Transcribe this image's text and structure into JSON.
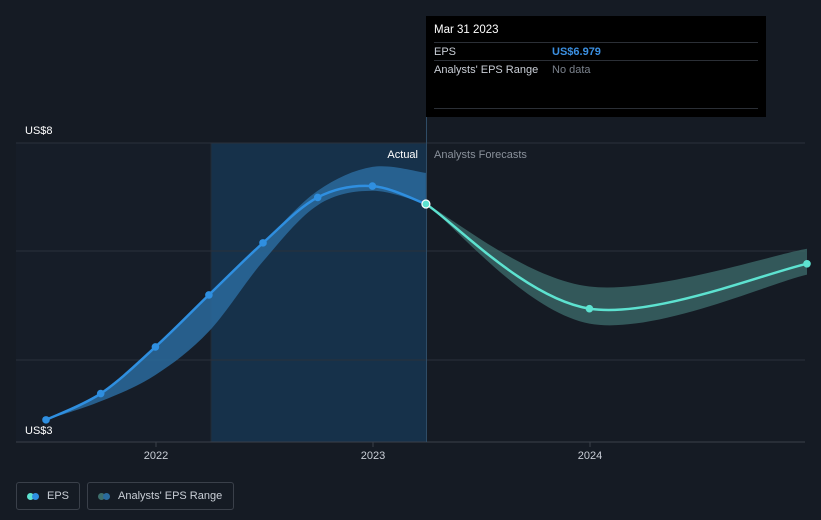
{
  "chart_data": {
    "type": "line",
    "ylabel_top": "US$8",
    "ylabel_bottom": "US$3",
    "ylim": [
      3,
      8
    ],
    "x_ticks": [
      "2022",
      "2023",
      "2024"
    ],
    "region_labels": {
      "actual": "Actual",
      "forecast": "Analysts Forecasts"
    },
    "series": [
      {
        "name": "EPS",
        "points": [
          {
            "x": "2021-06-30",
            "y": 3.37
          },
          {
            "x": "2021-09-30",
            "y": 3.81
          },
          {
            "x": "2021-12-31",
            "y": 4.59
          },
          {
            "x": "2022-03-31",
            "y": 5.46
          },
          {
            "x": "2022-06-30",
            "y": 6.33
          },
          {
            "x": "2022-09-30",
            "y": 7.09
          },
          {
            "x": "2022-12-31",
            "y": 7.28
          },
          {
            "x": "2023-03-31",
            "y": 6.98
          }
        ]
      },
      {
        "name": "EPS Forecast",
        "points": [
          {
            "x": "2023-03-31",
            "y": 6.98
          },
          {
            "x": "2023-12-31",
            "y": 5.23
          },
          {
            "x": "2024-12-31",
            "y": 5.98
          }
        ]
      }
    ],
    "actual_range": {
      "name": "Analysts' EPS Range",
      "upper": [
        {
          "x": "2021-06-30",
          "y": 3.37
        },
        {
          "x": "2021-09-30",
          "y": 3.81
        },
        {
          "x": "2021-12-31",
          "y": 4.59
        },
        {
          "x": "2022-03-31",
          "y": 5.46
        },
        {
          "x": "2022-06-30",
          "y": 6.33
        },
        {
          "x": "2022-09-30",
          "y": 7.2
        },
        {
          "x": "2022-12-31",
          "y": 7.6
        },
        {
          "x": "2023-03-31",
          "y": 7.5
        }
      ],
      "lower": [
        {
          "x": "2021-06-30",
          "y": 3.37
        },
        {
          "x": "2021-09-30",
          "y": 3.68
        },
        {
          "x": "2021-12-31",
          "y": 4.12
        },
        {
          "x": "2022-03-31",
          "y": 4.85
        },
        {
          "x": "2022-06-30",
          "y": 6.02
        },
        {
          "x": "2022-09-30",
          "y": 6.96
        },
        {
          "x": "2022-12-31",
          "y": 7.2
        },
        {
          "x": "2023-03-31",
          "y": 6.98
        }
      ]
    },
    "forecast_range": {
      "upper": [
        {
          "x": "2023-03-31",
          "y": 6.98
        },
        {
          "x": "2023-12-31",
          "y": 5.6
        },
        {
          "x": "2024-12-31",
          "y": 6.23
        }
      ],
      "lower": [
        {
          "x": "2023-03-31",
          "y": 6.98
        },
        {
          "x": "2023-12-31",
          "y": 4.98
        },
        {
          "x": "2024-12-31",
          "y": 5.8
        }
      ]
    },
    "highlighted_point": {
      "x": "2023-03-31",
      "y": 6.979
    },
    "colors": {
      "eps": "#2f8fe0",
      "forecast": "#5de2d0",
      "actual_range": "#2a6a9c",
      "forecast_range": "#3d6e6c",
      "grid": "#2b313b",
      "highlight_region": "#16314a"
    }
  },
  "tooltip": {
    "date": "Mar 31 2023",
    "rows": [
      {
        "key": "EPS",
        "value": "US$6.979"
      },
      {
        "key": "Analysts' EPS Range",
        "value": "No data"
      }
    ]
  },
  "legend": [
    {
      "label": "EPS",
      "colors": [
        "#5de2d0",
        "#2f8fe0"
      ]
    },
    {
      "label": "Analysts' EPS Range",
      "colors": [
        "#3d6e6c",
        "#2a6a9c"
      ]
    }
  ]
}
